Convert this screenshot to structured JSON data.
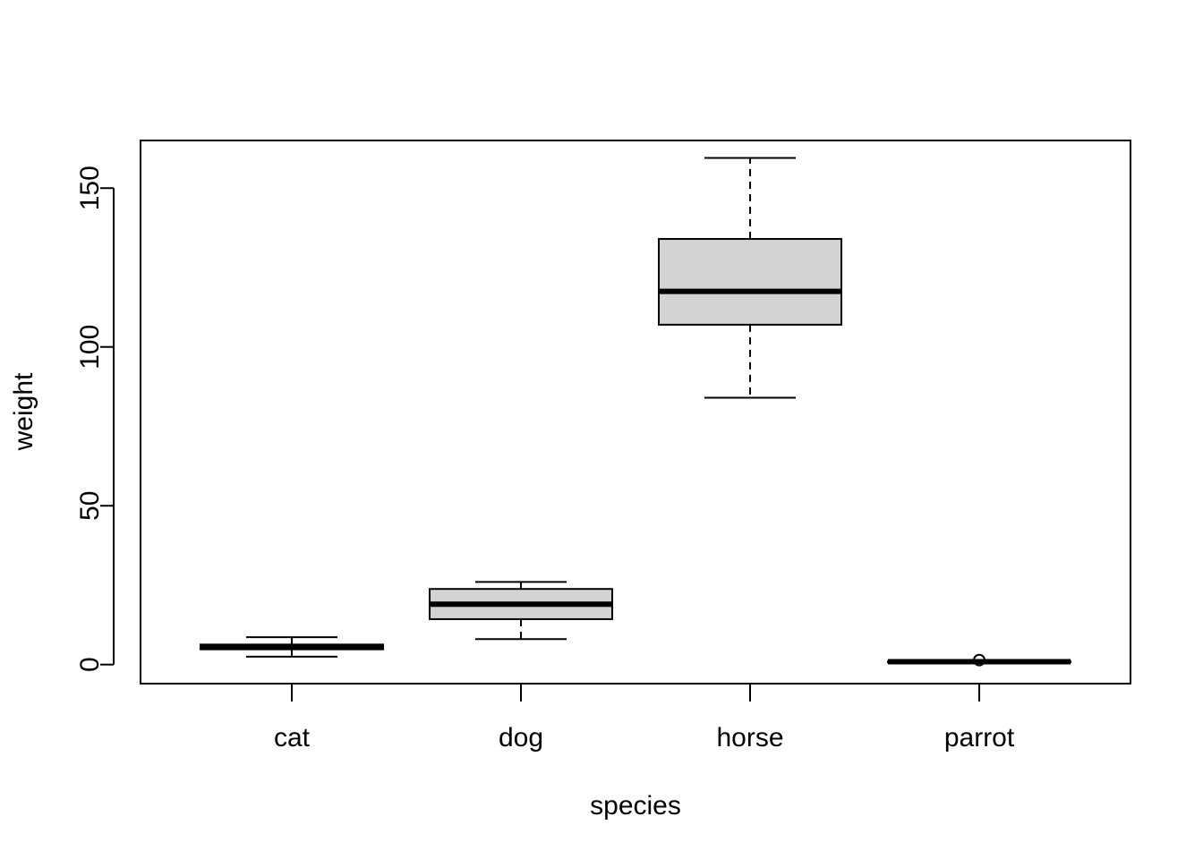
{
  "chart_data": {
    "type": "boxplot",
    "title": "",
    "xlabel": "species",
    "ylabel": "weight",
    "categories": [
      "cat",
      "dog",
      "horse",
      "parrot"
    ],
    "ylim": [
      -6,
      165
    ],
    "yticks": [
      0,
      50,
      100,
      150
    ],
    "grid": false,
    "legend": "none",
    "box_fill": "#d3d3d3",
    "boxes": [
      {
        "category": "cat",
        "whisker_low": 2.5,
        "q1": 4.8,
        "median": 5.6,
        "q3": 6.3,
        "whisker_high": 8.6,
        "outliers": []
      },
      {
        "category": "dog",
        "whisker_low": 8.0,
        "q1": 14.3,
        "median": 19.0,
        "q3": 23.8,
        "whisker_high": 26.0,
        "outliers": []
      },
      {
        "category": "horse",
        "whisker_low": 84.0,
        "q1": 107.0,
        "median": 117.5,
        "q3": 134.0,
        "whisker_high": 159.5,
        "outliers": []
      },
      {
        "category": "parrot",
        "whisker_low": 0.7,
        "q1": 0.8,
        "median": 0.9,
        "q3": 1.0,
        "whisker_high": 1.1,
        "outliers": [
          1.4
        ]
      }
    ]
  }
}
